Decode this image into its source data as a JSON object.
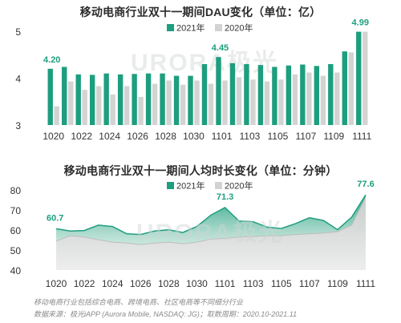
{
  "charts": [
    {
      "title": "移动电商行业双十一期间DAU变化（单位：亿）"
    },
    {
      "title": "移动电商行业双十一期间人均时长变化（单位：分钟）"
    }
  ],
  "watermark": "URORA极光",
  "footnotes": [
    "移动电商行业包括综合电商、跨境电商、社区电商等不同细分行业",
    "数据来源：极光iAPP (Aurora Mobile, NASDAQ: JG)；取数周期：2020.10-2021.11"
  ],
  "colors": {
    "series_2021": "#1d9e7e",
    "series_2020": "#d3d3d3",
    "label": "#1d9e7e",
    "axis_text": "#333333"
  },
  "chart_data": [
    {
      "type": "bar",
      "title": "移动电商行业双十一期间DAU变化（单位：亿）",
      "categories": [
        "1020",
        "1021",
        "1022",
        "1023",
        "1024",
        "1025",
        "1026",
        "1027",
        "1028",
        "1029",
        "1030",
        "1031",
        "1101",
        "1102",
        "1103",
        "1104",
        "1105",
        "1106",
        "1107",
        "1108",
        "1109",
        "1110",
        "1111"
      ],
      "tick_labels": [
        "1020",
        "1022",
        "1024",
        "1026",
        "1028",
        "1030",
        "1101",
        "1103",
        "1105",
        "1107",
        "1109",
        "1111"
      ],
      "series": [
        {
          "name": "2021年",
          "values": [
            4.2,
            4.24,
            4.08,
            4.07,
            4.1,
            4.08,
            4.09,
            4.1,
            4.1,
            4.05,
            4.05,
            4.3,
            4.45,
            4.32,
            4.3,
            4.28,
            4.24,
            4.27,
            4.29,
            4.26,
            4.3,
            4.57,
            4.99
          ]
        },
        {
          "name": "2020年",
          "values": [
            3.4,
            3.93,
            3.75,
            3.83,
            3.65,
            3.83,
            3.6,
            3.88,
            3.95,
            3.86,
            3.95,
            3.88,
            3.95,
            4.02,
            3.97,
            3.93,
            3.97,
            4.08,
            4.12,
            4.05,
            4.12,
            4.55,
            4.99
          ]
        }
      ],
      "data_labels": [
        {
          "category": "1020",
          "series": "2021年",
          "text": "4.20"
        },
        {
          "category": "1101",
          "series": "2021年",
          "text": "4.45"
        },
        {
          "category": "1111",
          "series": "2021年",
          "text": "4.99"
        }
      ],
      "yticks": [
        3,
        4,
        5
      ],
      "ylim": [
        3,
        5
      ],
      "legend": "top-center",
      "grid": false
    },
    {
      "type": "area",
      "title": "移动电商行业双十一期间人均时长变化（单位：分钟）",
      "categories": [
        "1020",
        "1021",
        "1022",
        "1023",
        "1024",
        "1025",
        "1026",
        "1027",
        "1028",
        "1029",
        "1030",
        "1031",
        "1101",
        "1102",
        "1103",
        "1104",
        "1105",
        "1106",
        "1107",
        "1108",
        "1109",
        "1110",
        "1111"
      ],
      "tick_labels": [
        "1020",
        "1022",
        "1024",
        "1026",
        "1028",
        "1030",
        "1101",
        "1103",
        "1105",
        "1107",
        "1109",
        "1111"
      ],
      "series": [
        {
          "name": "2021年",
          "values": [
            60.7,
            59.5,
            59.8,
            62.5,
            61.8,
            58.2,
            57.8,
            59.5,
            60.2,
            58.8,
            61.8,
            67.5,
            71.3,
            64.5,
            64.2,
            61.5,
            60.8,
            63.2,
            66.2,
            64.8,
            60.2,
            66.5,
            77.6
          ]
        },
        {
          "name": "2020年",
          "values": [
            54.5,
            57.2,
            56.5,
            55.2,
            54.0,
            53.5,
            52.8,
            53.5,
            54.0,
            53.2,
            54.0,
            55.5,
            55.8,
            56.5,
            56.8,
            57.2,
            57.2,
            57.8,
            58.2,
            58.5,
            59.2,
            62.5,
            76.5
          ]
        }
      ],
      "data_labels": [
        {
          "category": "1020",
          "series": "2021年",
          "text": "60.7"
        },
        {
          "category": "1101",
          "series": "2021年",
          "text": "71.3"
        },
        {
          "category": "1111",
          "series": "2021年",
          "text": "77.6"
        }
      ],
      "yticks": [
        40,
        50,
        60,
        70,
        80
      ],
      "ylim": [
        40,
        80
      ],
      "legend": "top-center",
      "grid": false
    }
  ]
}
